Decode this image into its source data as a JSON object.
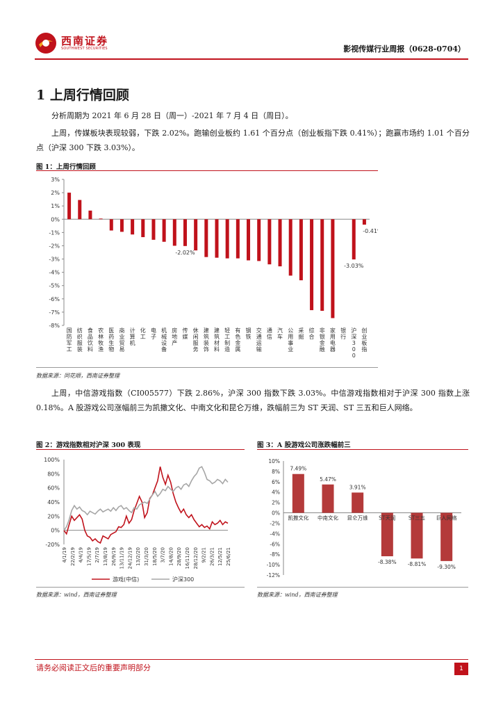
{
  "header": {
    "brand_cn": "西南证券",
    "brand_en": "SOUTHWEST SECURITIES",
    "report_title": "影视传媒行业周报（0628-0704）"
  },
  "section": {
    "title": "1  上周行情回顾",
    "para1": "分析周期为 2021 年 6 月 28 日（周一）-2021 年 7 月 4 日（周日）。",
    "para2": "上周，传媒板块表现较弱，下跌 2.02%。跑输创业板约 1.61 个百分点（创业板指下跌 0.41%）；跑赢市场约 1.01 个百分点（沪深 300 下跌 3.03%）。",
    "para3": "上周，中信游戏指数（CI005577）下跌 2.86%，沪深 300 指数下跌 3.03%。中信游戏指数相对于沪深 300 指数上涨 0.18%。A 股游戏公司涨幅前三为凯撒文化、中南文化和昆仑万维，跌幅前三为 ST 天润、ST 三五和巨人网络。"
  },
  "figures": {
    "fig1_title": "图 1：上周行情回顾",
    "fig1_source": "数据来源：同花顺，西南证券整理",
    "fig2_title": "图 2：游戏指数相对沪深 300 表现",
    "fig2_source": "数据来源：wind，西南证券整理",
    "fig3_title": "图 3：A 股游戏公司涨跌幅前三",
    "fig3_source": "数据来源：wind，西南证券整理"
  },
  "chart_data": [
    {
      "type": "bar",
      "title": "上周行情回顾",
      "categories": [
        "国防军工",
        "纺织服装",
        "食品饮料",
        "农林牧渔",
        "医药生物",
        "商业贸易",
        "计算机",
        "化工",
        "电子",
        "机械设备",
        "房地产",
        "传媒",
        "休闲服务",
        "建筑装饰",
        "建筑材料",
        "轻工制造",
        "有色金属",
        "钢铁",
        "交通运输",
        "通信",
        "汽车",
        "公用事业",
        "采掘",
        "综合",
        "非银金融",
        "家用电器",
        "银行",
        "沪深300",
        "创业板指"
      ],
      "values": [
        2.0,
        1.45,
        0.65,
        0.05,
        -0.85,
        -0.95,
        -1.15,
        -1.35,
        -1.55,
        -1.7,
        -2.0,
        -2.02,
        -2.35,
        -2.85,
        -2.9,
        -2.95,
        -2.95,
        -3.1,
        -3.15,
        -3.4,
        -3.55,
        -4.25,
        -4.6,
        -6.85,
        -6.9,
        -7.45,
        0,
        -3.03,
        -0.41
      ],
      "highlight_labels": {
        "传媒": "-2.02%",
        "沪深300": "-3.03%",
        "创业板指": "-0.41%"
      },
      "ylim": [
        -8,
        3
      ],
      "yticks": [
        "3%",
        "2%",
        "1%",
        "0%",
        "-1%",
        "-2%",
        "-3%",
        "-4%",
        "-5%",
        "-6%",
        "-7%",
        "-8%"
      ],
      "bar_color": "#c0121b"
    },
    {
      "type": "line",
      "title": "游戏指数相对沪深 300 表现",
      "xlabels": [
        "4/1/19",
        "22/2/19",
        "4/4/19",
        "17/5/19",
        "2/7/19",
        "13/8/19",
        "26/9/19",
        "13/11/19",
        "24/12/19",
        "13/2/20",
        "31/3/20",
        "18/5/20",
        "3/7/20",
        "14/8/20",
        "28/9/20",
        "16/11/20",
        "28/12/20",
        "9/2/21",
        "26/3/21",
        "12/5/21",
        "25/6/21"
      ],
      "yticks": [
        "100%",
        "80%",
        "60%",
        "40%",
        "20%",
        "0%",
        "-20%"
      ],
      "ylim": [
        -20,
        100
      ],
      "series": [
        {
          "name": "游戏(中信)",
          "color": "#c0121b",
          "values": [
            0,
            -5,
            8,
            20,
            14,
            18,
            22,
            16,
            0,
            -8,
            -10,
            -15,
            -12,
            -16,
            -18,
            -8,
            -10,
            -12,
            -6,
            -4,
            -2,
            5,
            4,
            8,
            20,
            10,
            15,
            28,
            38,
            48,
            40,
            18,
            25,
            45,
            50,
            60,
            70,
            90,
            75,
            65,
            78,
            68,
            52,
            40,
            32,
            25,
            30,
            22,
            18,
            22,
            15,
            10,
            5,
            8,
            4,
            6,
            2,
            12,
            8,
            10,
            14,
            8,
            12,
            10
          ]
        },
        {
          "name": "沪深300",
          "color": "#a6a6a6",
          "values": [
            0,
            5,
            15,
            28,
            35,
            30,
            33,
            28,
            26,
            22,
            27,
            25,
            23,
            27,
            30,
            26,
            28,
            30,
            27,
            32,
            28,
            33,
            35,
            30,
            32,
            28,
            25,
            32,
            30,
            36,
            38,
            40,
            38,
            44,
            50,
            55,
            48,
            52,
            58,
            56,
            62,
            58,
            55,
            60,
            62,
            58,
            64,
            66,
            62,
            70,
            76,
            80,
            88,
            90,
            82,
            72,
            70,
            66,
            68,
            72,
            70,
            66,
            72,
            68
          ]
        }
      ]
    },
    {
      "type": "bar",
      "title": "A 股游戏公司涨跌幅前三",
      "categories": [
        "凯撒文化",
        "中南文化",
        "昆仑万维",
        "ST天润",
        "ST三五",
        "巨人网络"
      ],
      "values": [
        7.49,
        5.47,
        3.91,
        -8.38,
        -8.81,
        -9.3
      ],
      "data_labels": [
        "7.49%",
        "5.47%",
        "3.91%",
        "-8.38%",
        "-8.81%",
        "-9.30%"
      ],
      "ylim": [
        -12,
        10
      ],
      "yticks": [
        "10%",
        "8%",
        "6%",
        "4%",
        "2%",
        "0%",
        "-2%",
        "-4%",
        "-6%",
        "-8%",
        "-10%",
        "-12%"
      ],
      "bar_color": "#b43a3a"
    }
  ],
  "footer": {
    "note": "请务必阅读正文后的重要声明部分",
    "page": "1"
  }
}
